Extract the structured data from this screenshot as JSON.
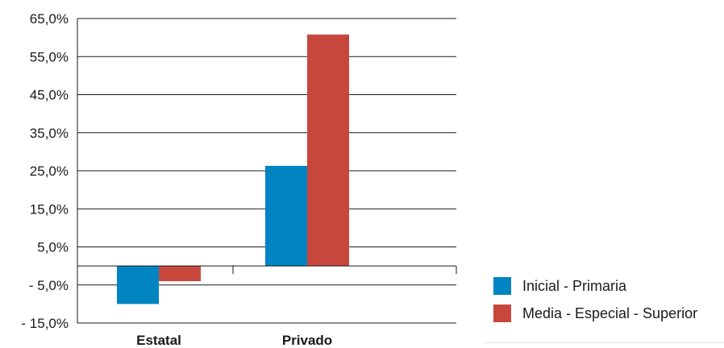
{
  "chart_data": {
    "type": "bar",
    "categories": [
      "Estatal",
      "Privado"
    ],
    "series": [
      {
        "name": "Inicial - Primaria",
        "color": "#0084c2",
        "values": [
          -10.0,
          26.3
        ]
      },
      {
        "name": "Media - Especial - Superior",
        "color": "#c8473d",
        "values": [
          -4.0,
          60.8
        ]
      }
    ],
    "y_ticks": [
      65,
      55,
      45,
      35,
      25,
      15,
      5,
      -5,
      -15
    ],
    "y_tick_labels": [
      "65,0%",
      "55,0%",
      "45,0%",
      "35,0%",
      "25,0%",
      "15,0%",
      "5,0%",
      "- 5,0%",
      "- 15,0%"
    ],
    "ylim": [
      -15,
      65
    ],
    "grid": true,
    "legend_position": "bottom-right"
  }
}
